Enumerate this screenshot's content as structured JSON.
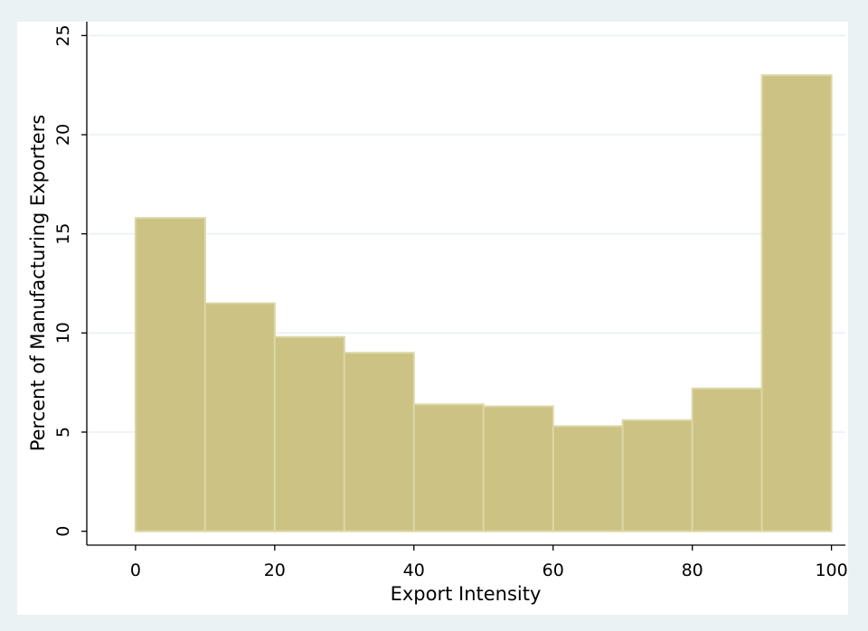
{
  "chart_data": {
    "type": "bar",
    "title": "",
    "xlabel": "Export Intensity",
    "ylabel": "Percent of Manufacturing Exporters",
    "bin_edges": [
      0,
      10,
      20,
      30,
      40,
      50,
      60,
      70,
      80,
      90,
      100
    ],
    "values": [
      15.8,
      11.5,
      9.8,
      9.0,
      6.4,
      6.3,
      5.3,
      5.6,
      7.2,
      23.0
    ],
    "xlim": [
      -7,
      102
    ],
    "ylim": [
      -0.7,
      25.7
    ],
    "xticks": [
      0,
      20,
      40,
      60,
      80,
      100
    ],
    "yticks": [
      0,
      5,
      10,
      15,
      20,
      25
    ],
    "grid": "horizontal",
    "colors": {
      "bar_fill": "#cbc283",
      "bar_edge": "#dcd7a7",
      "plot_bg": "#ffffff",
      "outer_bg": "#eaf2f3",
      "grid": "#e8f0f2",
      "axis": "#000000"
    }
  }
}
